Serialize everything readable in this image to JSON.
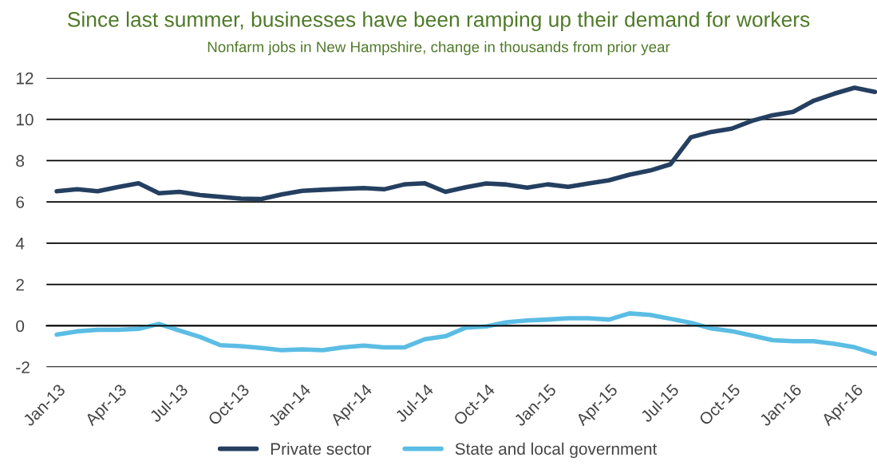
{
  "chart_data": {
    "type": "line",
    "title": "Since last summer, businesses have been ramping up their demand for workers",
    "subtitle": "Nonfarm jobs in New Hampshire, change in thousands from prior year",
    "categories": [
      "Jan-13",
      null,
      null,
      "Apr-13",
      null,
      null,
      "Jul-13",
      null,
      null,
      "Oct-13",
      null,
      null,
      "Jan-14",
      null,
      null,
      "Apr-14",
      null,
      null,
      "Jul-14",
      null,
      null,
      "Oct-14",
      null,
      null,
      "Jan-15",
      null,
      null,
      "Apr-15",
      null,
      null,
      "Jul-15",
      null,
      null,
      "Oct-15",
      null,
      null,
      "Jan-16",
      null,
      null,
      "Apr-16",
      null
    ],
    "series": [
      {
        "name": "Private sector",
        "color": "#243f60",
        "values": [
          6.52,
          6.61,
          6.52,
          6.72,
          6.9,
          6.42,
          6.49,
          6.33,
          6.25,
          6.16,
          6.14,
          6.36,
          6.54,
          6.59,
          6.63,
          6.67,
          6.61,
          6.85,
          6.9,
          6.49,
          6.71,
          6.89,
          6.84,
          6.69,
          6.85,
          6.73,
          6.89,
          7.05,
          7.32,
          7.52,
          7.82,
          9.13,
          9.39,
          9.55,
          9.93,
          10.2,
          10.36,
          10.9,
          11.24,
          11.53,
          11.33
        ]
      },
      {
        "name": "State and local government",
        "color": "#5bbde4",
        "values": [
          -0.43,
          -0.27,
          -0.2,
          -0.2,
          -0.15,
          0.09,
          -0.23,
          -0.54,
          -0.94,
          -0.99,
          -1.08,
          -1.18,
          -1.14,
          -1.18,
          -1.05,
          -0.96,
          -1.05,
          -1.05,
          -0.65,
          -0.51,
          -0.09,
          -0.03,
          0.17,
          0.26,
          0.3,
          0.36,
          0.36,
          0.3,
          0.6,
          0.53,
          0.34,
          0.14,
          -0.13,
          -0.26,
          -0.48,
          -0.7,
          -0.75,
          -0.75,
          -0.87,
          -1.04,
          -1.35
        ]
      }
    ],
    "ylim": [
      -2,
      12
    ],
    "yticks": [
      -2,
      0,
      2,
      4,
      6,
      8,
      10,
      12
    ],
    "grid": "y",
    "legend": "bottom",
    "marker": "none",
    "line_style": "solid"
  }
}
